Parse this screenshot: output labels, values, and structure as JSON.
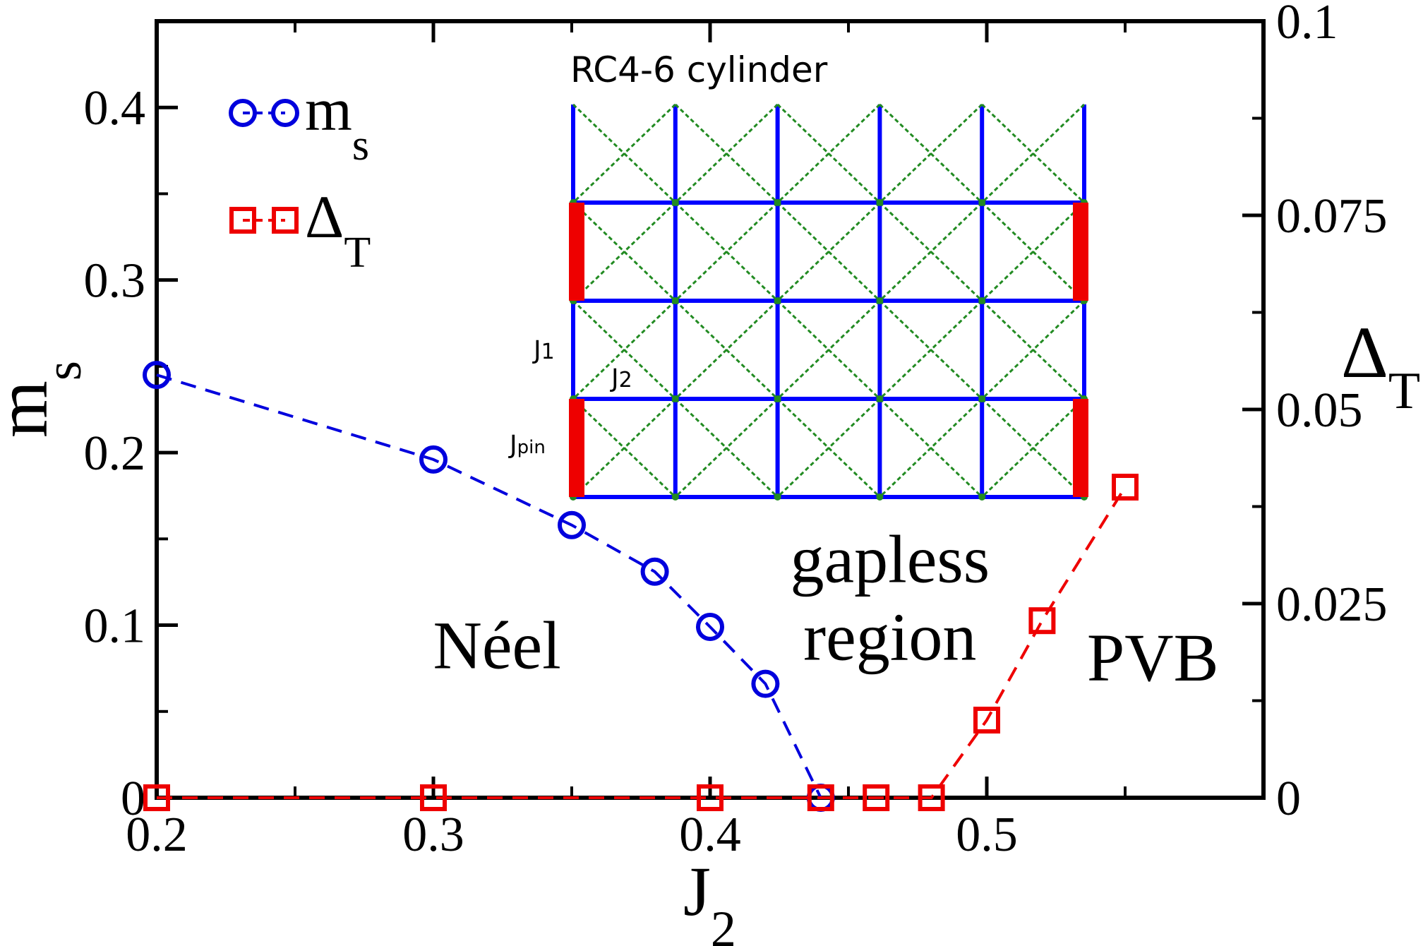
{
  "chart_data": {
    "type": "line",
    "xlabel": "J",
    "xlabel_sub": "2",
    "ylabel_left": "m",
    "ylabel_left_sub": "s",
    "ylabel_right": "Δ",
    "ylabel_right_sub": "T",
    "xlim": [
      0.2,
      0.6
    ],
    "ylim_left": [
      0,
      0.45
    ],
    "ylim_right": [
      0,
      0.1
    ],
    "x_ticks": [
      "0.2",
      "0.3",
      "0.4",
      "0.5"
    ],
    "y_left_ticks": [
      "0",
      "0.1",
      "0.2",
      "0.3",
      "0.4"
    ],
    "y_right_ticks": [
      "0",
      "0.025",
      "0.05",
      "0.075",
      "0.1"
    ],
    "legend_position": "top-left",
    "series": [
      {
        "name": "m",
        "name_sub": "s",
        "axis": "left",
        "color": "#0000dd",
        "marker": "circle",
        "line": "dashed",
        "x": [
          0.2,
          0.3,
          0.35,
          0.38,
          0.4,
          0.42,
          0.44
        ],
        "y": [
          0.245,
          0.196,
          0.158,
          0.131,
          0.099,
          0.066,
          0.0
        ]
      },
      {
        "name": "Δ",
        "name_sub": "T",
        "axis": "right",
        "color": "#ee0000",
        "marker": "square",
        "line": "dashed",
        "x": [
          0.2,
          0.3,
          0.4,
          0.44,
          0.46,
          0.48,
          0.5,
          0.52,
          0.55
        ],
        "y": [
          0.0,
          0.0,
          0.0,
          0.0,
          0.0,
          0.0,
          0.01,
          0.0228,
          0.04
        ]
      }
    ],
    "annotations": [
      {
        "text": "Néel",
        "x": 0.323,
        "y": 0.075
      },
      {
        "text": "gapless",
        "x": 0.465,
        "y": 0.125
      },
      {
        "text": "region",
        "x": 0.465,
        "y": 0.08
      },
      {
        "text": "PVB",
        "x": 0.56,
        "y": 0.068
      }
    ],
    "inset": {
      "title": "RC4-6  cylinder",
      "label_j1": "J",
      "label_j1_sub": "1",
      "label_j2": "J",
      "label_j2_sub": "2",
      "label_jpin": "J",
      "label_jpin_sub": "pin",
      "columns": 6,
      "rows": 4,
      "nn_color": "#0000ff",
      "nnn_color": "#228B22",
      "pin_color": "#ee0000"
    }
  }
}
